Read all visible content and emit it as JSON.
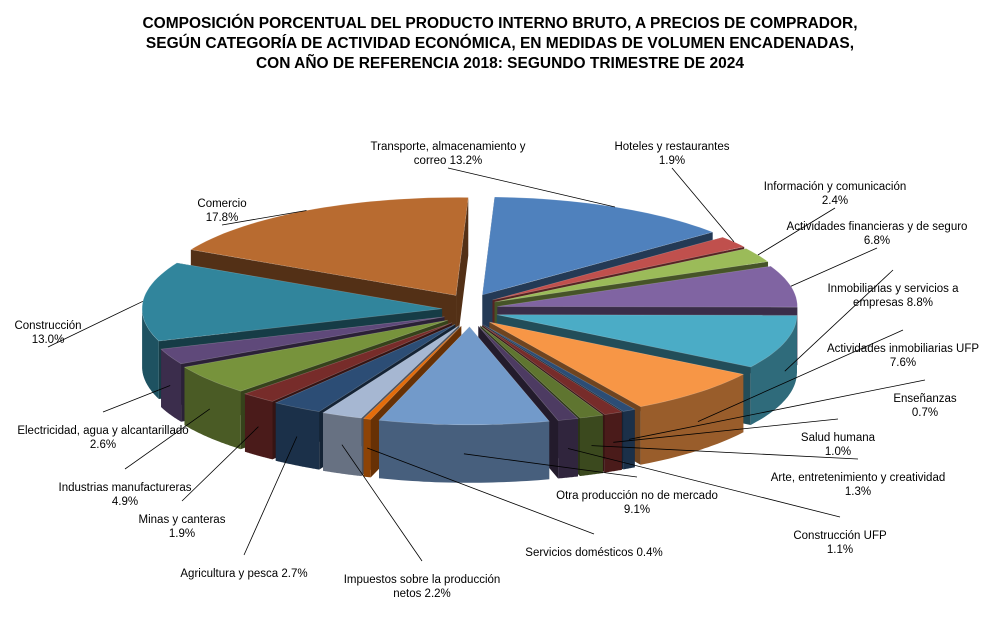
{
  "chart_data": {
    "type": "pie",
    "style": "3d-exploded",
    "title_lines": [
      "COMPOSICIÓN PORCENTUAL DEL PRODUCTO INTERNO BRUTO, A PRECIOS DE COMPRADOR,",
      "SEGÚN CATEGORÍA DE ACTIVIDAD ECONÓMICA, EN MEDIDAS DE VOLUMEN ENCADENADAS,",
      "CON AÑO DE REFERENCIA 2018: SEGUNDO TRIMESTRE DE 2024"
    ],
    "unit": "%",
    "legend": "none",
    "slices": [
      {
        "label_lines": [
          "Transporte, almacenamiento y",
          "correo 13.2%"
        ],
        "value": 13.2,
        "color": "#4F81BD"
      },
      {
        "label_lines": [
          "Hoteles y restaurantes",
          "1.9%"
        ],
        "value": 1.9,
        "color": "#C0504D"
      },
      {
        "label_lines": [
          "Información y comunicación",
          "2.4%"
        ],
        "value": 2.4,
        "color": "#9BBB59"
      },
      {
        "label_lines": [
          "Actividades financieras y de seguro",
          "6.8%"
        ],
        "value": 6.8,
        "color": "#8064A2"
      },
      {
        "label_lines": [
          "Inmobiliarias y servicios a",
          "empresas 8.8%"
        ],
        "value": 8.8,
        "color": "#4BACC6"
      },
      {
        "label_lines": [
          "Actividades inmobiliarias UFP",
          "7.6%"
        ],
        "value": 7.6,
        "color": "#F79646"
      },
      {
        "label_lines": [
          "Enseñanzas",
          "0.7%"
        ],
        "value": 0.7,
        "color": "#2C4D75"
      },
      {
        "label_lines": [
          "Salud humana",
          "1.0%"
        ],
        "value": 1.0,
        "color": "#772C2A"
      },
      {
        "label_lines": [
          "Arte, entretenimiento y creatividad",
          "1.3%"
        ],
        "value": 1.3,
        "color": "#5F7530"
      },
      {
        "label_lines": [
          "Construcción UFP",
          "1.1%"
        ],
        "value": 1.1,
        "color": "#4D3B62"
      },
      {
        "label_lines": [
          "Otra producción no de mercado",
          "9.1%"
        ],
        "value": 9.1,
        "color": "#729ACA"
      },
      {
        "label_lines": [
          "Servicios domésticos 0.4%"
        ],
        "value": 0.4,
        "color": "#E46C0A"
      },
      {
        "label_lines": [
          "Impuestos sobre la producción",
          "netos 2.2%"
        ],
        "value": 2.2,
        "color": "#A6B7D2"
      },
      {
        "label_lines": [
          "Agricultura y pesca 2.7%"
        ],
        "value": 2.7,
        "color": "#2C4D75"
      },
      {
        "label_lines": [
          "Minas y canteras",
          "1.9%"
        ],
        "value": 1.9,
        "color": "#772C2A"
      },
      {
        "label_lines": [
          "Industrias manufactureras",
          "4.9%"
        ],
        "value": 4.9,
        "color": "#77933C"
      },
      {
        "label_lines": [
          "Electricidad, agua y alcantarillado",
          "2.6%"
        ],
        "value": 2.6,
        "color": "#5F497A"
      },
      {
        "label_lines": [
          "Construcción",
          "13.0%"
        ],
        "value": 13.0,
        "color": "#31859C"
      },
      {
        "label_lines": [
          "Comercio",
          "17.8%"
        ],
        "value": 17.8,
        "color": "#B86B30"
      }
    ]
  }
}
